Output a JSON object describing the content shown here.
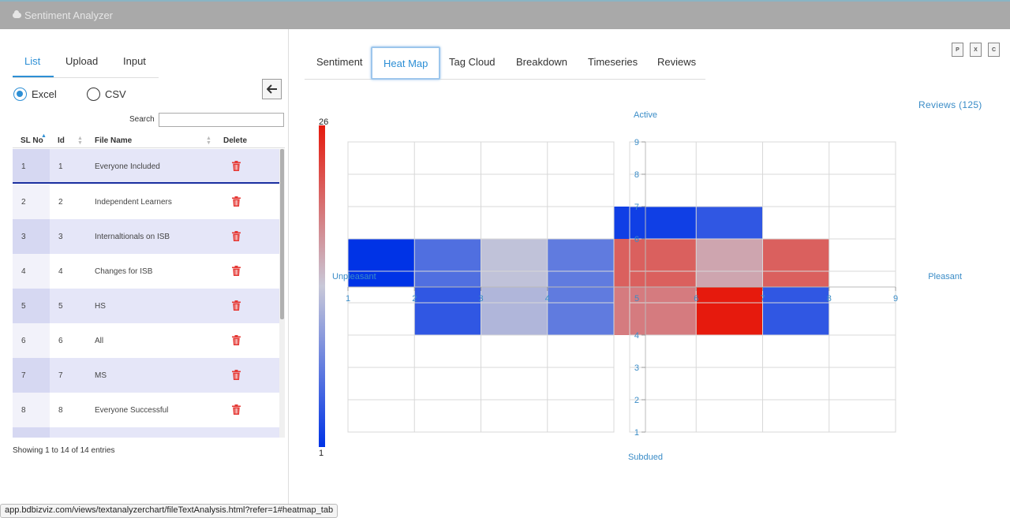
{
  "app": {
    "title": "Sentiment Analyzer"
  },
  "left": {
    "tabs": [
      "List",
      "Upload",
      "Input"
    ],
    "active_tab": "List",
    "radio": [
      {
        "label": "Excel",
        "selected": true
      },
      {
        "label": "CSV",
        "selected": false
      }
    ],
    "search_label": "Search",
    "search_value": "",
    "columns": [
      "SL No",
      "Id",
      "File Name",
      "Delete"
    ],
    "rows": [
      {
        "sl": "1",
        "id": "1",
        "name": "Everyone Included"
      },
      {
        "sl": "2",
        "id": "2",
        "name": "Independent Learners"
      },
      {
        "sl": "3",
        "id": "3",
        "name": "Internaltionals on ISB"
      },
      {
        "sl": "4",
        "id": "4",
        "name": "Changes for ISB"
      },
      {
        "sl": "5",
        "id": "5",
        "name": "HS"
      },
      {
        "sl": "6",
        "id": "6",
        "name": "All"
      },
      {
        "sl": "7",
        "id": "7",
        "name": "MS"
      },
      {
        "sl": "8",
        "id": "8",
        "name": "Everyone Successful"
      }
    ],
    "showing": "Showing 1 to 14 of 14 entries",
    "icons": {
      "back": "arrow-left-icon",
      "delete": "trash-icon",
      "brand": "cloud-icon"
    }
  },
  "right": {
    "tabs": [
      "Sentiment",
      "Heat Map",
      "Tag Cloud",
      "Breakdown",
      "Timeseries",
      "Reviews"
    ],
    "active_tab": "Heat Map",
    "reviews_link": "Reviews (125)",
    "export_icons": [
      "pdf-icon",
      "excel-icon",
      "csv-icon"
    ]
  },
  "status_url": "app.bdbizviz.com/views/textanalyzerchart/fileTextAnalysis.html?refer=1#heatmap_tab",
  "chart_data": {
    "type": "heatmap",
    "x_axis": {
      "range": [
        1,
        9
      ],
      "ticks": [
        "1",
        "2",
        "3",
        "4",
        "5",
        "6",
        "7",
        "8",
        "9"
      ],
      "left_label": "Unpleasant",
      "right_label": "Pleasant"
    },
    "y_axis": {
      "range": [
        1,
        9
      ],
      "ticks": [
        "1",
        "2",
        "3",
        "4",
        "5",
        "6",
        "7",
        "8",
        "9"
      ],
      "top_label": "Active",
      "bottom_label": "Subdued"
    },
    "colorscale": {
      "min": 1,
      "max": 26,
      "min_color": "#0033e6",
      "mid_color": "#c8c8d8",
      "max_color": "#e61a0d"
    },
    "cells": [
      {
        "x": [
          1,
          2
        ],
        "y": [
          5,
          6
        ],
        "value": 1
      },
      {
        "x": [
          2,
          3
        ],
        "y": [
          5,
          6
        ],
        "value": 6
      },
      {
        "x": [
          3,
          4
        ],
        "y": [
          5,
          6
        ],
        "value": 13
      },
      {
        "x": [
          4,
          5
        ],
        "y": [
          5,
          6
        ],
        "value": 7
      },
      {
        "x": [
          2,
          3
        ],
        "y": [
          4,
          5
        ],
        "value": 4
      },
      {
        "x": [
          3,
          4
        ],
        "y": [
          4,
          5
        ],
        "value": 12
      },
      {
        "x": [
          4,
          5
        ],
        "y": [
          4,
          5
        ],
        "value": 7
      },
      {
        "x": [
          5,
          6
        ],
        "y": [
          6,
          7
        ],
        "value": 2
      },
      {
        "x": [
          6,
          7
        ],
        "y": [
          6,
          7
        ],
        "value": 4
      },
      {
        "x": [
          5,
          6
        ],
        "y": [
          5,
          6
        ],
        "value": 21
      },
      {
        "x": [
          6,
          7
        ],
        "y": [
          5,
          6
        ],
        "value": 16
      },
      {
        "x": [
          7,
          8
        ],
        "y": [
          5,
          6
        ],
        "value": 21
      },
      {
        "x": [
          5,
          6
        ],
        "y": [
          4,
          5
        ],
        "value": 19
      },
      {
        "x": [
          6,
          7
        ],
        "y": [
          4,
          5
        ],
        "value": 26
      },
      {
        "x": [
          7,
          8
        ],
        "y": [
          4,
          5
        ],
        "value": 4
      }
    ],
    "legend": {
      "max_label": "26",
      "min_label": "1"
    }
  }
}
